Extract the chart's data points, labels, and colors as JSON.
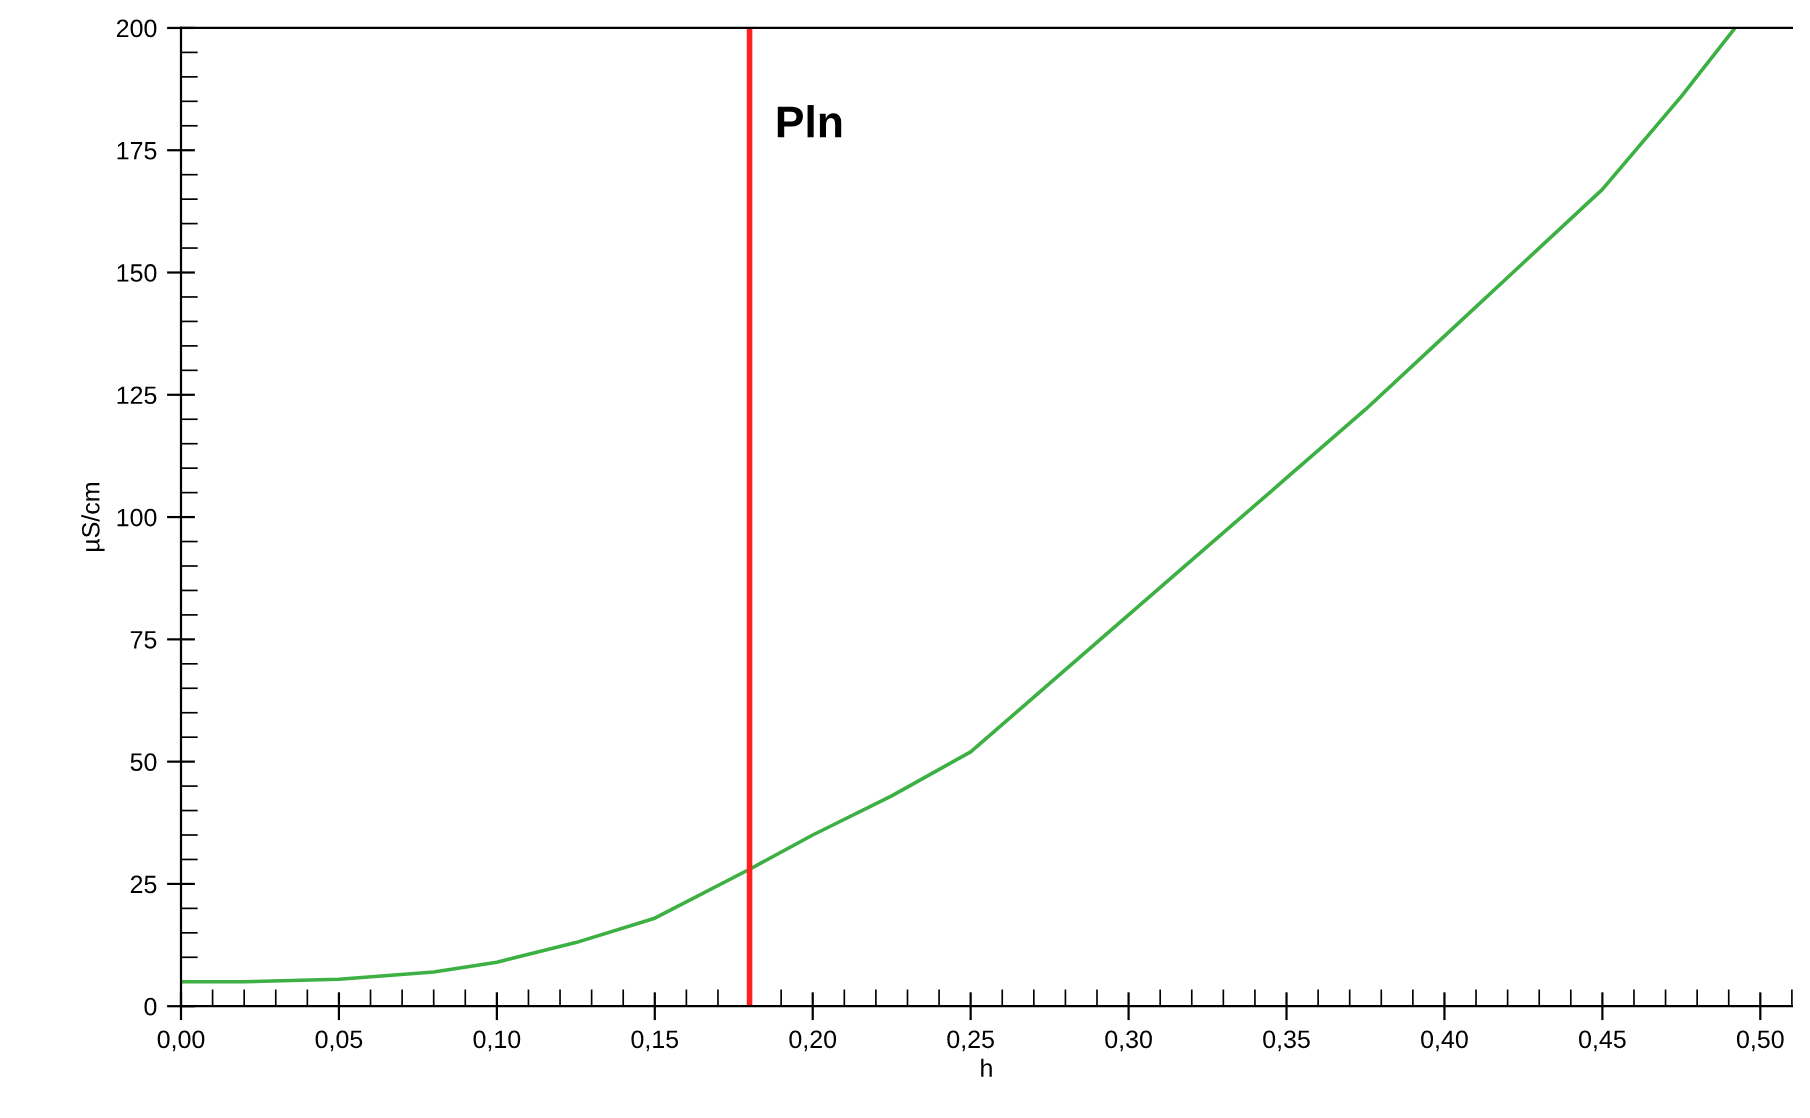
{
  "chart_data": {
    "type": "line",
    "xlabel": "h",
    "ylabel": "µS/cm",
    "x": [
      0,
      0.02,
      0.05,
      0.08,
      0.1,
      0.125,
      0.15,
      0.18,
      0.2,
      0.225,
      0.25,
      0.275,
      0.3,
      0.325,
      0.35,
      0.375,
      0.4,
      0.425,
      0.45,
      0.475,
      0.492
    ],
    "series": [
      {
        "color": "#3cb043",
        "values": [
          5,
          5,
          5.5,
          7,
          9,
          13,
          18,
          28,
          35,
          43,
          52,
          66,
          80,
          94,
          108,
          122,
          137,
          152,
          167,
          186,
          200
        ]
      }
    ],
    "xlim": [
      0,
      0.51
    ],
    "ylim": [
      0,
      200
    ],
    "xticks": [
      {
        "value": 0,
        "label": "0,00"
      },
      {
        "value": 0.05,
        "label": "0,05"
      },
      {
        "value": 0.1,
        "label": "0,10"
      },
      {
        "value": 0.15,
        "label": "0,15"
      },
      {
        "value": 0.2,
        "label": "0,20"
      },
      {
        "value": 0.25,
        "label": "0,25"
      },
      {
        "value": 0.3,
        "label": "0,30"
      },
      {
        "value": 0.35,
        "label": "0,35"
      },
      {
        "value": 0.4,
        "label": "0,40"
      },
      {
        "value": 0.45,
        "label": "0,45"
      },
      {
        "value": 0.5,
        "label": "0,50"
      }
    ],
    "yticks": [
      0,
      25,
      50,
      75,
      100,
      125,
      150,
      175,
      200
    ],
    "ref_lines": [
      {
        "axis": "x",
        "value": 0.18,
        "label": "Pln",
        "color": "#ff2020",
        "line_style": "solid"
      }
    ],
    "grid": false,
    "legend": false,
    "marker": "none",
    "line_style": "solid"
  }
}
